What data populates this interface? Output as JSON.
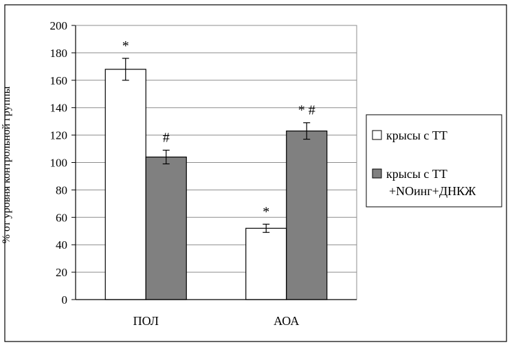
{
  "chart_data": {
    "type": "bar",
    "title": "",
    "xlabel": "",
    "ylabel": "% от уровня контрольной группы",
    "ylim": [
      0,
      200
    ],
    "ystep": 20,
    "grid": true,
    "legend_position": "right",
    "categories": [
      "ПОЛ",
      "АОА"
    ],
    "series": [
      {
        "name": "крысы с ТТ",
        "color": "#ffffff",
        "values": [
          168,
          52
        ],
        "errors": [
          8,
          3
        ],
        "annotations": [
          "*",
          "*"
        ]
      },
      {
        "name_lines": [
          "крысы с ТТ",
          "+NOинг+ДНКЖ"
        ],
        "color": "#808080",
        "values": [
          104,
          123
        ],
        "errors": [
          5,
          6
        ],
        "annotations": [
          "#",
          "* #"
        ]
      }
    ]
  }
}
